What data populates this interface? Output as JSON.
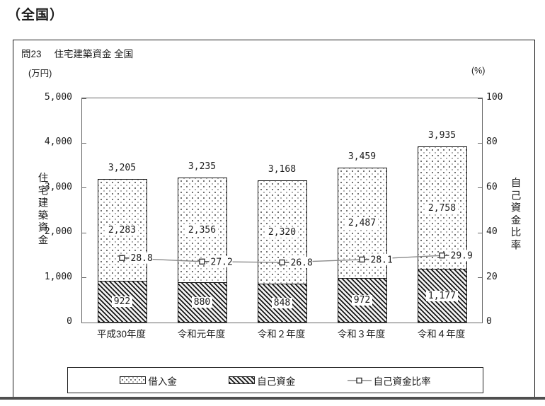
{
  "page": {
    "heading": "（全国）"
  },
  "panel": {
    "q_label": "問23",
    "title": "住宅建築資金 全国"
  },
  "chart_data": {
    "type": "bar",
    "variant": "stacked-columns-with-ratio-line",
    "title": "問23 住宅建築資金 全国",
    "categories": [
      "平成30年度",
      "令和元年度",
      "令和２年度",
      "令和３年度",
      "令和４年度"
    ],
    "series": [
      {
        "name": "借入金",
        "pattern": "dots",
        "values": [
          2283,
          2356,
          2320,
          2487,
          2758
        ],
        "labels": [
          "2,283",
          "2,356",
          "2,320",
          "2,487",
          "2,758"
        ]
      },
      {
        "name": "自己資金",
        "pattern": "diagonal-hatch",
        "values": [
          922,
          880,
          848,
          972,
          1177
        ],
        "labels": [
          "922",
          "880",
          "848",
          "972",
          "1,177"
        ]
      }
    ],
    "totals": {
      "values": [
        3205,
        3235,
        3168,
        3459,
        3935
      ],
      "labels": [
        "3,205",
        "3,235",
        "3,168",
        "3,459",
        "3,935"
      ]
    },
    "line": {
      "name": "自己資金比率",
      "axis": "right",
      "marker": "open-square",
      "values": [
        28.8,
        27.2,
        26.8,
        28.1,
        29.9
      ],
      "labels": [
        "28.8",
        "27.2",
        "26.8",
        "28.1",
        "29.9"
      ]
    },
    "left_axis": {
      "unit": "(万円)",
      "title": "住宅建築資金",
      "min": 0,
      "max": 5000,
      "tick_labels": [
        "5,000",
        "4,000",
        "3,000",
        "2,000",
        "1,000",
        "0"
      ]
    },
    "right_axis": {
      "unit": "(%)",
      "title": "自己資金比率",
      "min": 0,
      "max": 100,
      "tick_labels": [
        "100",
        "80",
        "60",
        "40",
        "20",
        "0"
      ]
    },
    "legend_position": "bottom",
    "grid": false,
    "colors": {
      "ink": "#1a1a1a",
      "axis": "#666666",
      "ratio_line": "#8a8a8a"
    }
  },
  "legend": {
    "items": [
      {
        "label": "借入金",
        "swatch": "dots"
      },
      {
        "label": "自己資金",
        "swatch": "hatch"
      },
      {
        "label": "自己資金比率",
        "swatch": "line-marker"
      }
    ]
  }
}
